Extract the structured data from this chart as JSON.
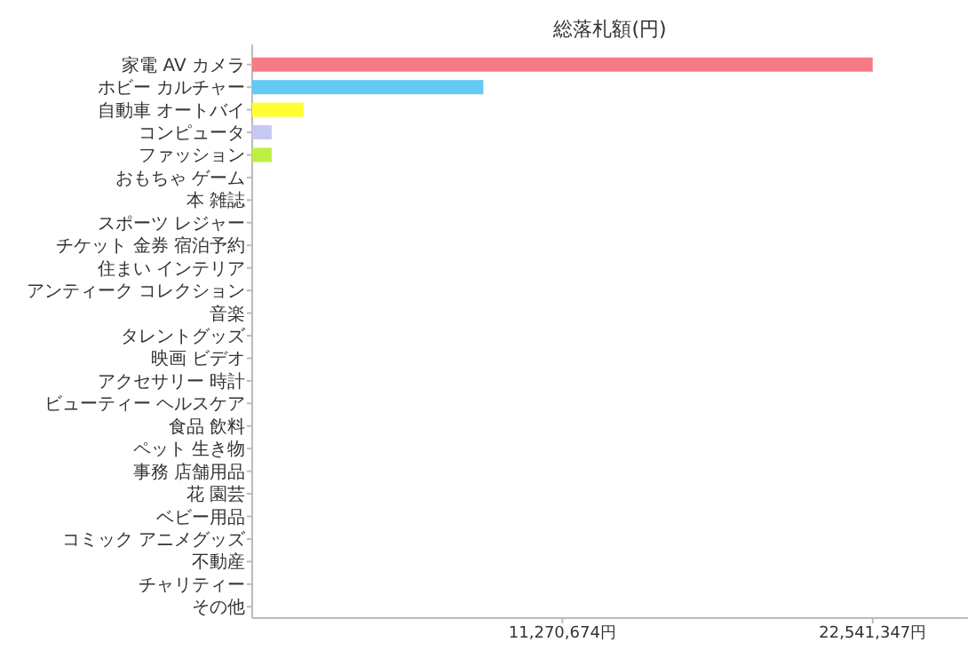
{
  "chart_data": {
    "type": "bar",
    "orientation": "horizontal",
    "title": "総落札額(円)",
    "categories": [
      "家電 AV カメラ",
      "ホビー カルチャー",
      "自動車 オートバイ",
      "コンピュータ",
      "ファッション",
      "おもちゃ ゲーム",
      "本 雑誌",
      "スポーツ レジャー",
      "チケット 金券 宿泊予約",
      "住まい インテリア",
      "アンティーク コレクション",
      "音楽",
      "タレントグッズ",
      "映画 ビデオ",
      "アクセサリー 時計",
      "ビューティー ヘルスケア",
      "食品 飲料",
      "ペット 生き物",
      "事務 店舗用品",
      "花 園芸",
      "ベビー用品",
      "コミック アニメグッズ",
      "不動産",
      "チャリティー",
      "その他"
    ],
    "values": [
      22541347,
      8400000,
      1870000,
      710000,
      710000,
      0,
      0,
      0,
      0,
      0,
      0,
      0,
      0,
      0,
      0,
      0,
      0,
      0,
      0,
      0,
      0,
      0,
      0,
      0,
      0
    ],
    "colors": [
      "#f77b84",
      "#66c8f4",
      "#ffff33",
      "#c8c8f4",
      "#bdf043",
      null,
      null,
      null,
      null,
      null,
      null,
      null,
      null,
      null,
      null,
      null,
      null,
      null,
      null,
      null,
      null,
      null,
      null,
      null,
      null
    ],
    "xlim": [
      0,
      26000000
    ],
    "xticks": [
      {
        "value": 11270674,
        "label": "11,270,674円"
      },
      {
        "value": 22541347,
        "label": "22,541,347円"
      }
    ],
    "grid": false
  }
}
